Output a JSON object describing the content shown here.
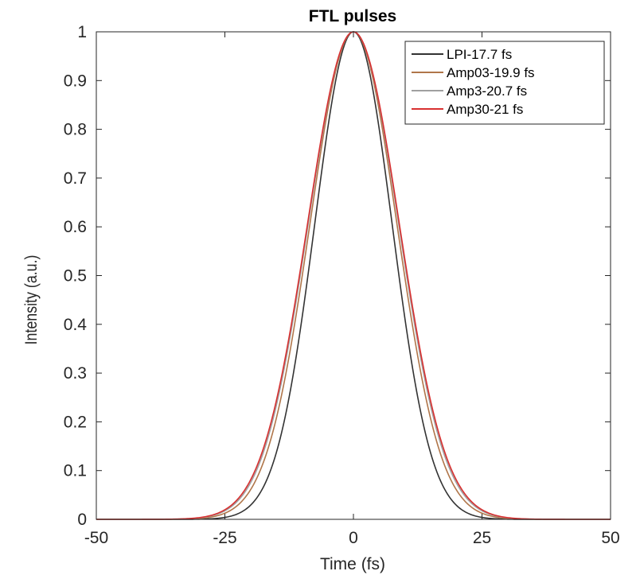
{
  "chart_data": {
    "type": "line",
    "title": "FTL pulses",
    "xlabel": "Time (fs)",
    "ylabel": "Intensity (a.u.)",
    "xlim": [
      -50,
      50
    ],
    "ylim": [
      0,
      1
    ],
    "xticks": [
      -50,
      -25,
      0,
      25,
      50
    ],
    "yticks": [
      0,
      0.1,
      0.2,
      0.3,
      0.4,
      0.5,
      0.6,
      0.7,
      0.8,
      0.9,
      1
    ],
    "grid": false,
    "legend_position": "top-right",
    "series": [
      {
        "name": "LPI-17.7 fs",
        "fwhm": 17.7,
        "peak_time": 0,
        "peak": 1,
        "color": "#333333"
      },
      {
        "name": "Amp03-19.9 fs",
        "fwhm": 19.9,
        "peak_time": 0,
        "peak": 1,
        "color": "#b0764a"
      },
      {
        "name": "Amp3-20.7 fs",
        "fwhm": 20.7,
        "peak_time": 0,
        "peak": 1,
        "color": "#a0a0a0"
      },
      {
        "name": "Amp30-21 fs",
        "fwhm": 21,
        "peak_time": 0,
        "peak": 1,
        "color": "#d83030"
      }
    ]
  }
}
